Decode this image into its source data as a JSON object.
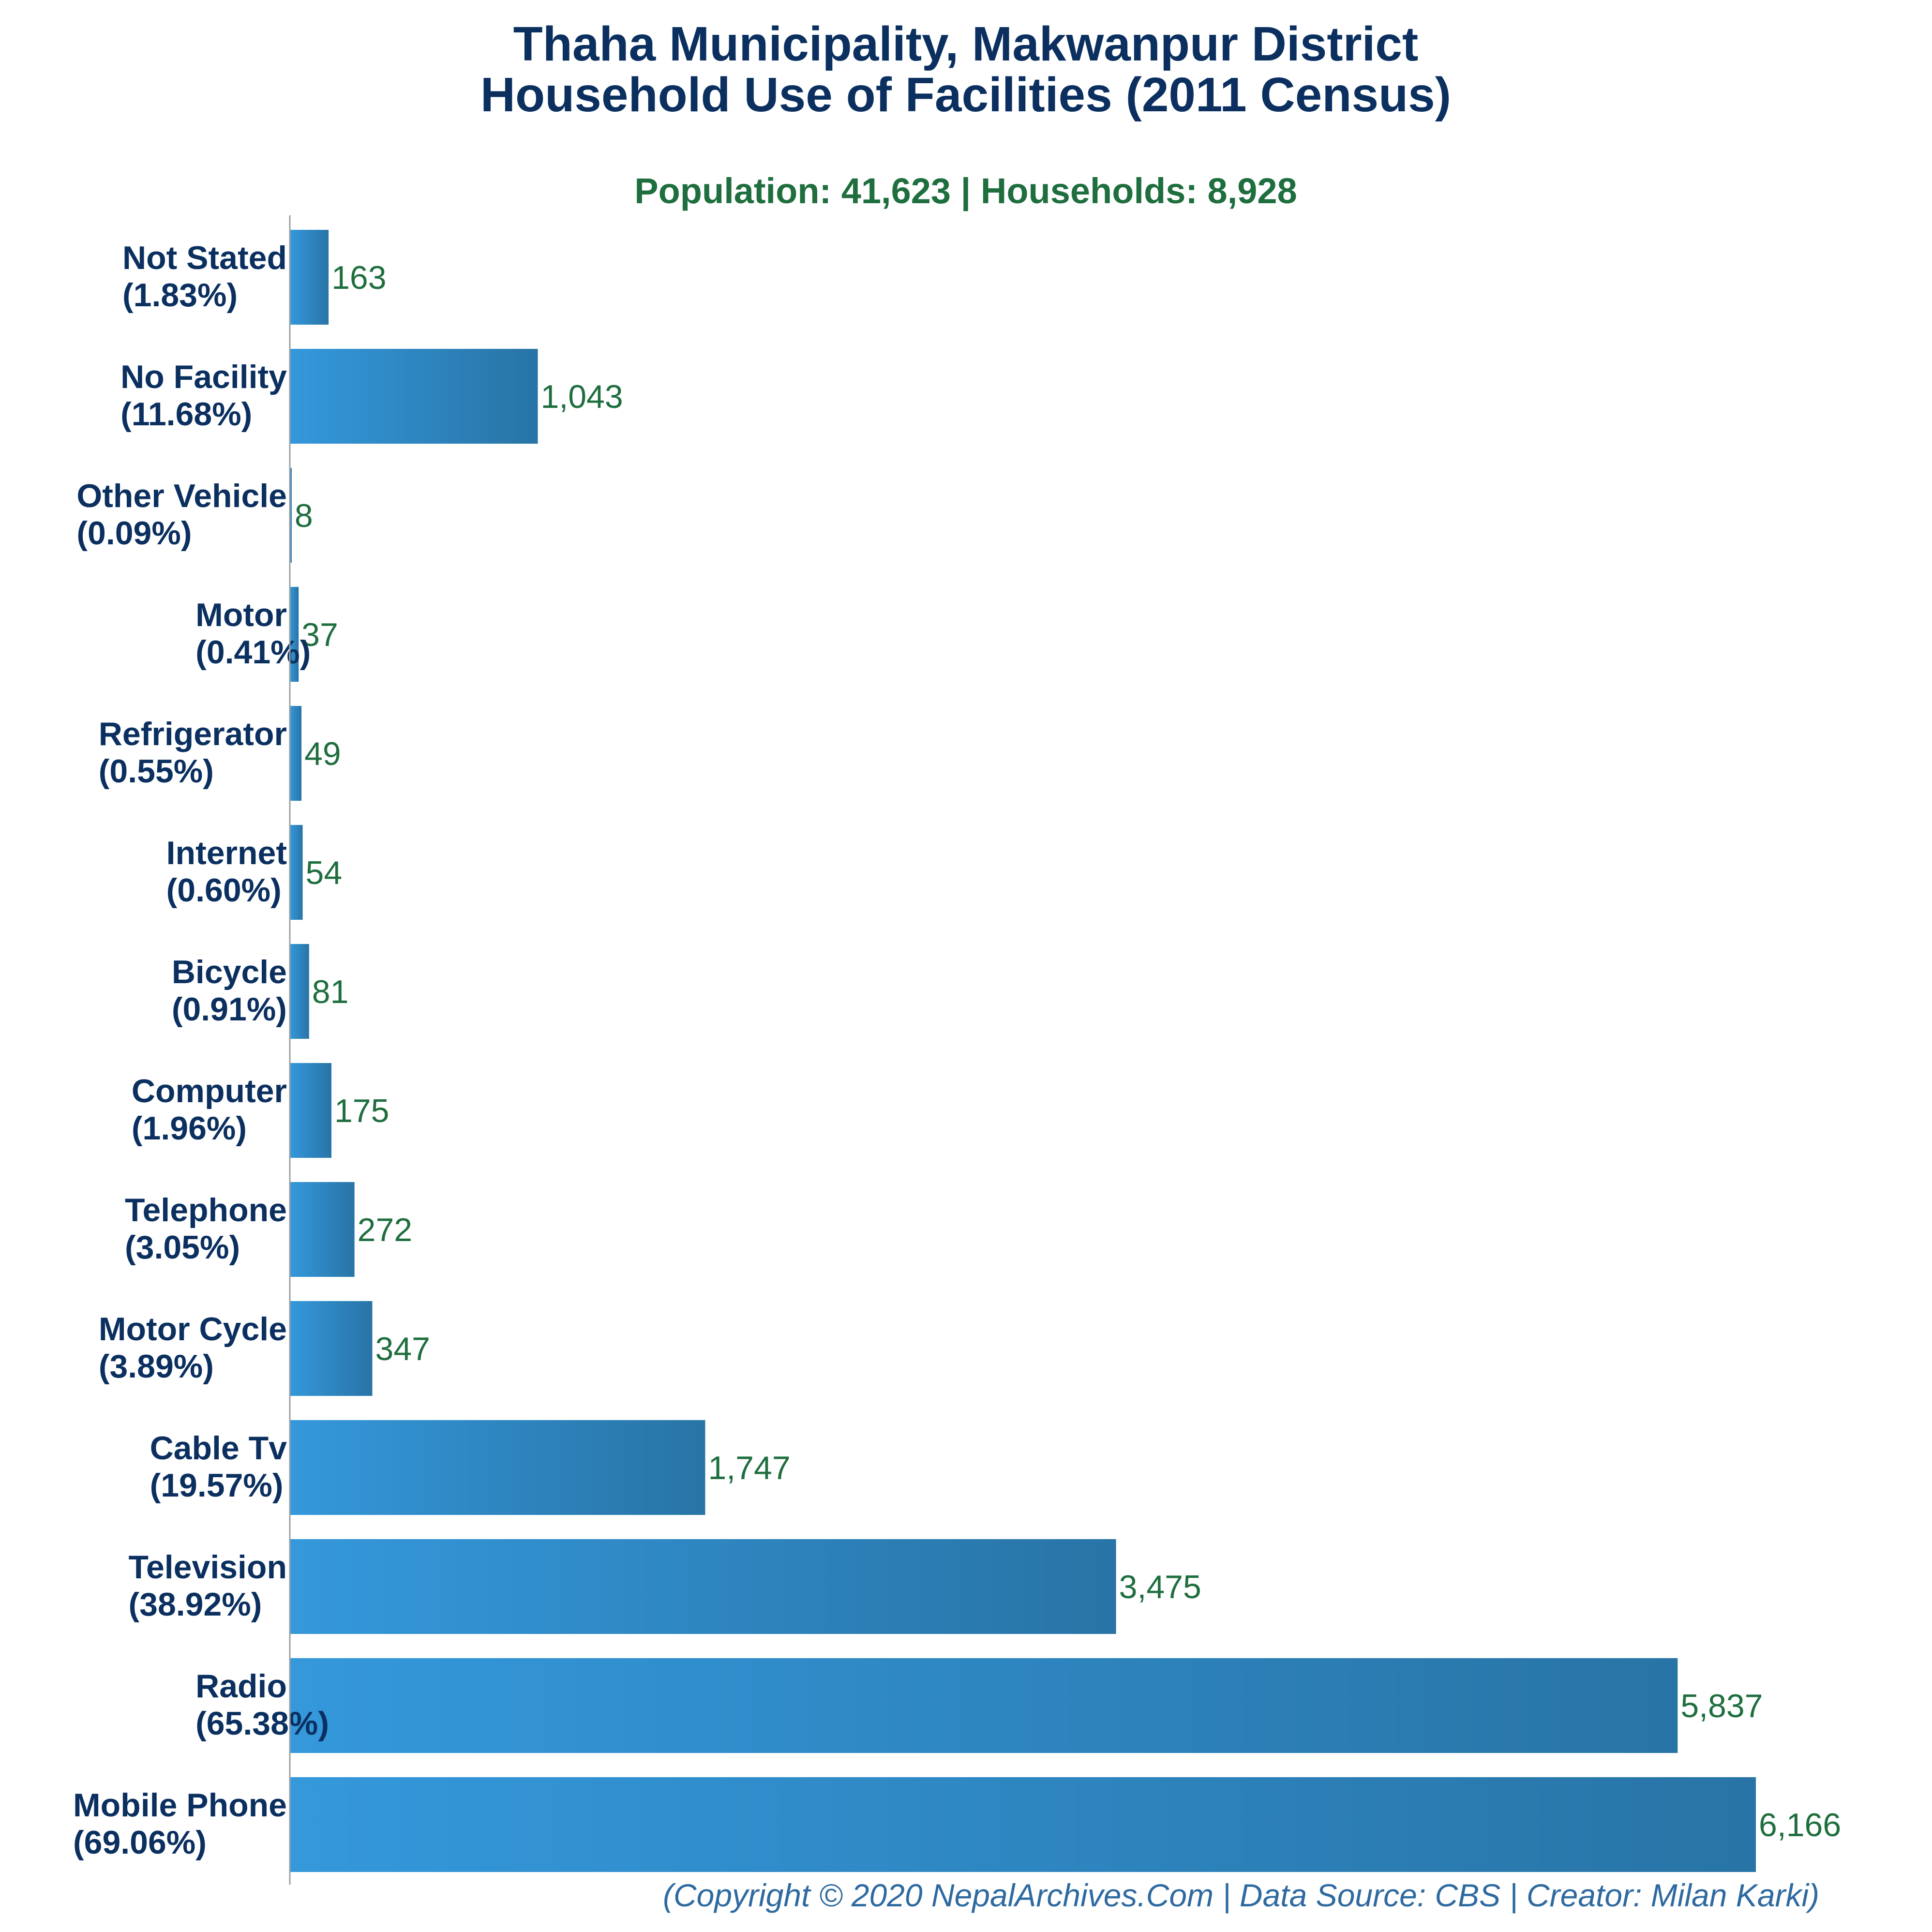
{
  "chart_data": {
    "type": "bar",
    "orientation": "horizontal",
    "title_lines": [
      "Thaha Municipality, Makwanpur District",
      "Household Use of Facilities (2011 Census)"
    ],
    "subtitle": "Population: 41,623 | Households: 8,928",
    "footer": "(Copyright © 2020 NepalArchives.Com | Data Source: CBS | Creator: Milan Karki)",
    "categories": [
      {
        "name": "Not Stated",
        "pct": "(1.83%)",
        "value": 163,
        "value_label": "163"
      },
      {
        "name": "No Facility",
        "pct": "(11.68%)",
        "value": 1043,
        "value_label": "1,043"
      },
      {
        "name": "Other Vehicle",
        "pct": "(0.09%)",
        "value": 8,
        "value_label": "8"
      },
      {
        "name": "Motor",
        "pct": "(0.41%)",
        "value": 37,
        "value_label": "37"
      },
      {
        "name": "Refrigerator",
        "pct": "(0.55%)",
        "value": 49,
        "value_label": "49"
      },
      {
        "name": "Internet",
        "pct": "(0.60%)",
        "value": 54,
        "value_label": "54"
      },
      {
        "name": "Bicycle",
        "pct": "(0.91%)",
        "value": 81,
        "value_label": "81"
      },
      {
        "name": "Computer",
        "pct": "(1.96%)",
        "value": 175,
        "value_label": "175"
      },
      {
        "name": "Telephone",
        "pct": "(3.05%)",
        "value": 272,
        "value_label": "272"
      },
      {
        "name": "Motor Cycle",
        "pct": "(3.89%)",
        "value": 347,
        "value_label": "347"
      },
      {
        "name": "Cable Tv",
        "pct": "(19.57%)",
        "value": 1747,
        "value_label": "1,747"
      },
      {
        "name": "Television",
        "pct": "(38.92%)",
        "value": 3475,
        "value_label": "3,475"
      },
      {
        "name": "Radio",
        "pct": "(65.38%)",
        "value": 5837,
        "value_label": "5,837"
      },
      {
        "name": "Mobile Phone",
        "pct": "(69.06%)",
        "value": 6166,
        "value_label": "6,166"
      }
    ],
    "xlim": [
      0,
      6166
    ],
    "grid": false,
    "legend": "none",
    "colors": {
      "bar_start": "#3498db",
      "bar_end": "#2874a6",
      "axis": "#9aa0a6"
    }
  }
}
